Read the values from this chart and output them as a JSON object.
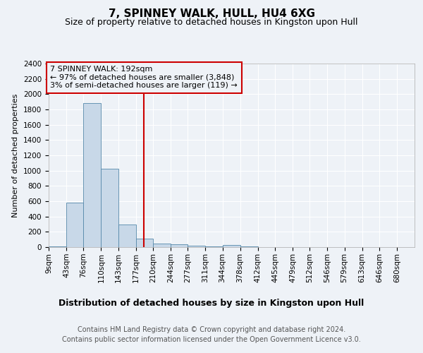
{
  "title": "7, SPINNEY WALK, HULL, HU4 6XG",
  "subtitle": "Size of property relative to detached houses in Kingston upon Hull",
  "xlabel": "Distribution of detached houses by size in Kingston upon Hull",
  "ylabel": "Number of detached properties",
  "footer_line1": "Contains HM Land Registry data © Crown copyright and database right 2024.",
  "footer_line2": "Contains public sector information licensed under the Open Government Licence v3.0.",
  "annotation_line1": "7 SPINNEY WALK: 192sqm",
  "annotation_line2": "← 97% of detached houses are smaller (3,848)",
  "annotation_line3": "3% of semi-detached houses are larger (119) →",
  "bar_color": "#c8d8e8",
  "bar_edge_color": "#5588aa",
  "red_line_color": "#cc0000",
  "property_size_sqm": 192,
  "categories": [
    "9sqm",
    "43sqm",
    "76sqm",
    "110sqm",
    "143sqm",
    "177sqm",
    "210sqm",
    "244sqm",
    "277sqm",
    "311sqm",
    "344sqm",
    "378sqm",
    "412sqm",
    "445sqm",
    "479sqm",
    "512sqm",
    "546sqm",
    "579sqm",
    "613sqm",
    "646sqm",
    "680sqm"
  ],
  "bin_edges": [
    9,
    43,
    76,
    110,
    143,
    177,
    210,
    244,
    277,
    311,
    344,
    378,
    412,
    445,
    479,
    512,
    546,
    579,
    613,
    646,
    680,
    714
  ],
  "values": [
    10,
    580,
    1880,
    1020,
    295,
    115,
    50,
    40,
    15,
    5,
    25,
    5,
    0,
    0,
    0,
    0,
    0,
    0,
    0,
    0,
    0
  ],
  "ylim": [
    0,
    2400
  ],
  "yticks": [
    0,
    200,
    400,
    600,
    800,
    1000,
    1200,
    1400,
    1600,
    1800,
    2000,
    2200,
    2400
  ],
  "background_color": "#eef2f7",
  "grid_color": "#ffffff",
  "title_fontsize": 11,
  "subtitle_fontsize": 9,
  "ylabel_fontsize": 8,
  "xlabel_fontsize": 9,
  "tick_fontsize": 7.5,
  "annotation_fontsize": 8,
  "footer_fontsize": 7
}
